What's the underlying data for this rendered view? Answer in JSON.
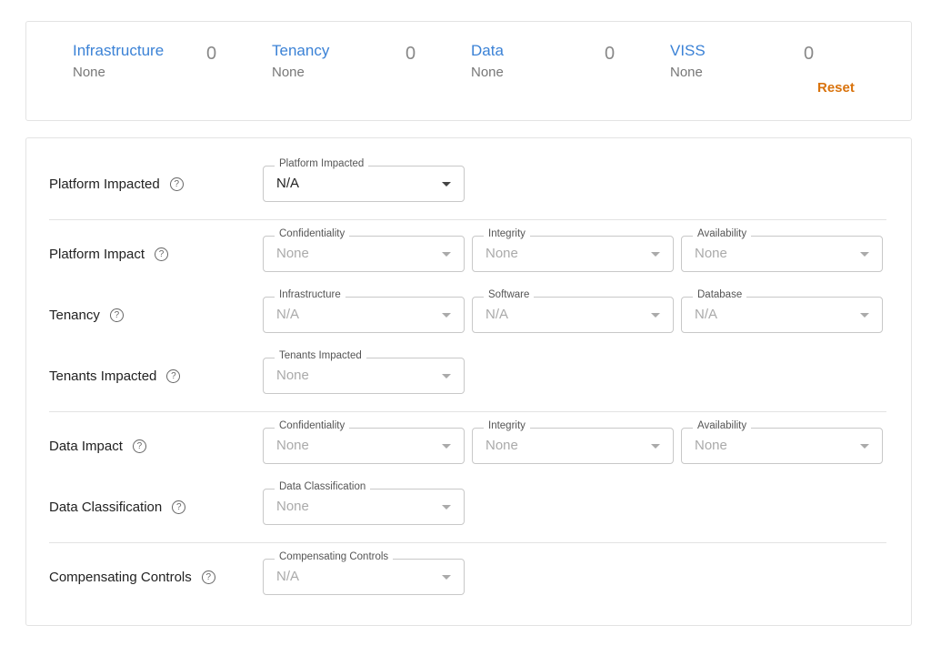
{
  "summary": {
    "items": [
      {
        "title": "Infrastructure",
        "value": "None",
        "count": "0"
      },
      {
        "title": "Tenancy",
        "value": "None",
        "count": "0"
      },
      {
        "title": "Data",
        "value": "None",
        "count": "0"
      },
      {
        "title": "VISS",
        "value": "None",
        "count": "0"
      }
    ],
    "reset_label": "Reset"
  },
  "form": {
    "rows": [
      {
        "label": "Platform Impacted",
        "selects": [
          {
            "label": "Platform Impacted",
            "value": "N/A",
            "active": true
          }
        ]
      },
      {
        "label": "Platform Impact",
        "selects": [
          {
            "label": "Confidentiality",
            "value": "None"
          },
          {
            "label": "Integrity",
            "value": "None"
          },
          {
            "label": "Availability",
            "value": "None"
          }
        ]
      },
      {
        "label": "Tenancy",
        "selects": [
          {
            "label": "Infrastructure",
            "value": "N/A"
          },
          {
            "label": "Software",
            "value": "N/A"
          },
          {
            "label": "Database",
            "value": "N/A"
          }
        ]
      },
      {
        "label": "Tenants Impacted",
        "selects": [
          {
            "label": "Tenants Impacted",
            "value": "None"
          }
        ]
      },
      {
        "label": "Data Impact",
        "selects": [
          {
            "label": "Confidentiality",
            "value": "None"
          },
          {
            "label": "Integrity",
            "value": "None"
          },
          {
            "label": "Availability",
            "value": "None"
          }
        ]
      },
      {
        "label": "Data Classification",
        "selects": [
          {
            "label": "Data Classification",
            "value": "None"
          }
        ]
      },
      {
        "label": "Compensating Controls",
        "selects": [
          {
            "label": "Compensating Controls",
            "value": "N/A"
          }
        ]
      }
    ],
    "help_icon": "question-circle-icon"
  },
  "colors": {
    "link": "#3b82d6",
    "reset": "#d9730d"
  }
}
